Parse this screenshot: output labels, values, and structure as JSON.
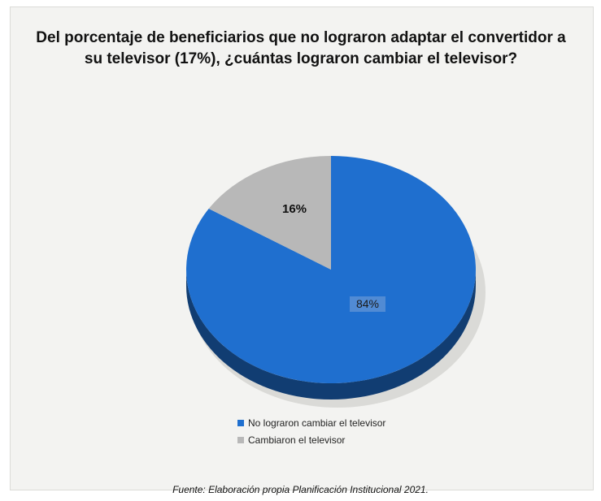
{
  "chart_data": {
    "type": "pie",
    "title": "Del porcentaje de beneficiarios que no lograron adaptar el convertidor a su televisor (17%), ¿cuántas lograron cambiar el televisor?",
    "categories": [
      "No lograron cambiar el televisor",
      "Cambiaron el televisor"
    ],
    "values": [
      84,
      16
    ],
    "value_labels": [
      "84%",
      "16%"
    ],
    "colors": [
      "#1f6fcf",
      "#b8b8b8"
    ],
    "legend_position": "bottom",
    "style": "3d"
  },
  "source": "Fuente: Elaboración propia Planificación Institucional 2021."
}
